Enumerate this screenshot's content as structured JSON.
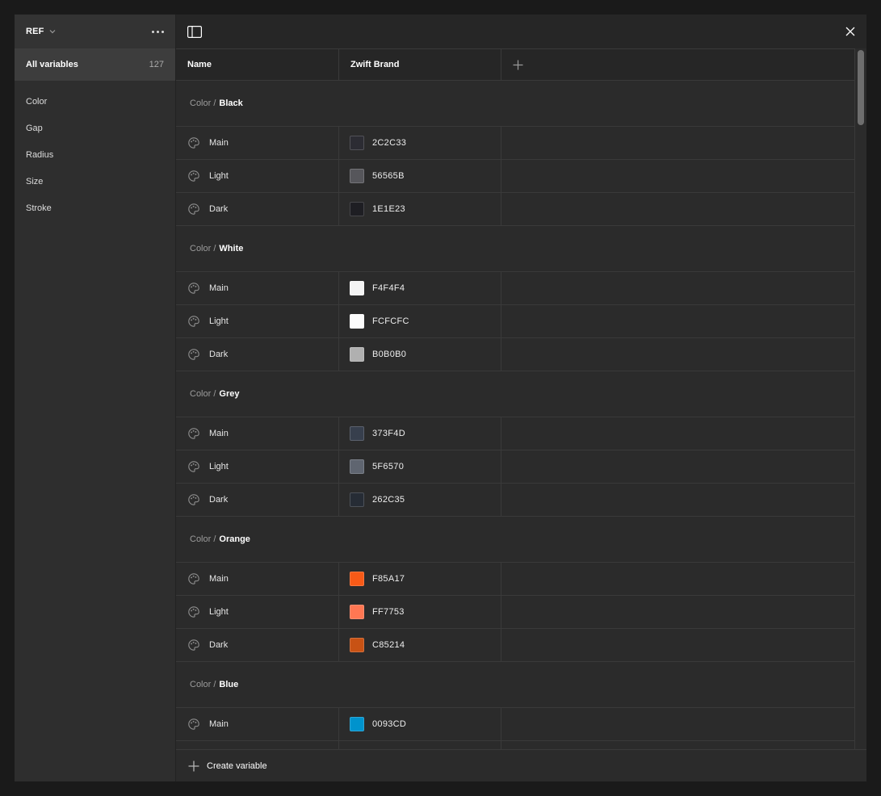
{
  "sidebar": {
    "collection_name": "REF",
    "all_variables": {
      "label": "All variables",
      "count": "127"
    },
    "groups": [
      {
        "label": "Color"
      },
      {
        "label": "Gap"
      },
      {
        "label": "Radius"
      },
      {
        "label": "Size"
      },
      {
        "label": "Stroke"
      }
    ]
  },
  "table": {
    "columns": {
      "name": "Name",
      "mode": "Zwift Brand",
      "add": "+"
    },
    "sections": [
      {
        "prefix": "Color /",
        "name": "Black",
        "rows": [
          {
            "name": "Main",
            "hex": "2C2C33"
          },
          {
            "name": "Light",
            "hex": "56565B"
          },
          {
            "name": "Dark",
            "hex": "1E1E23"
          }
        ]
      },
      {
        "prefix": "Color /",
        "name": "White",
        "rows": [
          {
            "name": "Main",
            "hex": "F4F4F4"
          },
          {
            "name": "Light",
            "hex": "FCFCFC"
          },
          {
            "name": "Dark",
            "hex": "B0B0B0"
          }
        ]
      },
      {
        "prefix": "Color /",
        "name": "Grey",
        "rows": [
          {
            "name": "Main",
            "hex": "373F4D"
          },
          {
            "name": "Light",
            "hex": "5F6570"
          },
          {
            "name": "Dark",
            "hex": "262C35"
          }
        ]
      },
      {
        "prefix": "Color /",
        "name": "Orange",
        "rows": [
          {
            "name": "Main",
            "hex": "F85A17"
          },
          {
            "name": "Light",
            "hex": "FF7753"
          },
          {
            "name": "Dark",
            "hex": "C85214"
          }
        ]
      },
      {
        "prefix": "Color /",
        "name": "Blue",
        "rows": [
          {
            "name": "Main",
            "hex": "0093CD"
          }
        ]
      }
    ]
  },
  "footer": {
    "create_label": "Create variable"
  },
  "ui_colors": {
    "sidebar_bg": "#2E2E2E",
    "sidebar_header_bg": "#333333",
    "selected_row_bg": "#3D3D3D",
    "panel_bg": "#2B2B2B",
    "topbar_bg": "#262626",
    "border": "#3A3A3A"
  }
}
